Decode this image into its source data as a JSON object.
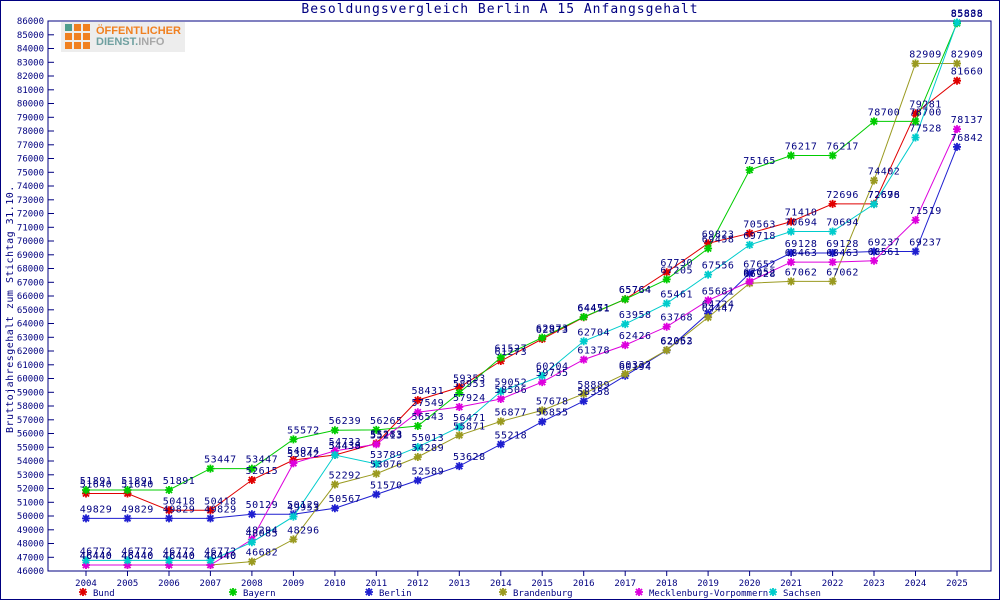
{
  "title": "Besoldungsvergleich Berlin A 15 Anfangsgehalt",
  "y_axis_label": "Bruttojahresgehalt zum Stichtag 31.10.",
  "logo": {
    "line1": "ÖFFENTLICHER",
    "line2a": "DIENST.",
    "line2b": "INFO",
    "orange": "#f08020",
    "teal": "#4f9d8d",
    "gray": "#a8a8a8"
  },
  "colors": {
    "axis_and_text": "#000080",
    "background": "#ffffff"
  },
  "chart_data": {
    "type": "line",
    "title": "Besoldungsvergleich Berlin A 15 Anfangsgehalt",
    "xlabel": "",
    "ylabel": "Bruttojahresgehalt zum Stichtag 31.10.",
    "ylim": [
      46000,
      86000
    ],
    "ytick_step": 1000,
    "grid": false,
    "legend_position": "bottom",
    "marker": "asterisk",
    "point_labels": true,
    "x": [
      2004,
      2005,
      2006,
      2007,
      2008,
      2009,
      2010,
      2011,
      2012,
      2013,
      2014,
      2015,
      2016,
      2017,
      2018,
      2019,
      2020,
      2021,
      2022,
      2023,
      2024,
      2025
    ],
    "series": [
      {
        "name": "Bund",
        "color": "#e00000",
        "values": [
          51640,
          51640,
          50418,
          50418,
          52615,
          54074,
          54438,
          55283,
          58431,
          59353,
          61273,
          62873,
          64451,
          65764,
          67730,
          69823,
          70563,
          71410,
          72696,
          72696,
          79281,
          81660
        ]
      },
      {
        "name": "Bayern",
        "color": "#00cc00",
        "values": [
          51891,
          51891,
          51891,
          53447,
          53447,
          55572,
          56239,
          56265,
          56543,
          58953,
          61527,
          62973,
          64471,
          65764,
          67205,
          69458,
          75165,
          76217,
          76217,
          78700,
          78700,
          85838
        ]
      },
      {
        "name": "Berlin",
        "color": "#1f1fd0",
        "values": [
          49829,
          49829,
          49829,
          49829,
          50129,
          50129,
          50567,
          51570,
          52589,
          53628,
          55218,
          56855,
          58358,
          60194,
          62053,
          64724,
          67652,
          69128,
          69128,
          69237,
          69237,
          76842
        ]
      },
      {
        "name": "Brandenburg",
        "color": "#9a9a20",
        "values": [
          46440,
          46440,
          46440,
          46440,
          46682,
          48296,
          52292,
          53076,
          54289,
          55871,
          56877,
          57678,
          58889,
          60332,
          62062,
          64447,
          66928,
          67062,
          67062,
          74402,
          82909,
          82909
        ]
      },
      {
        "name": "Mecklenburg-Vorpommern",
        "color": "#dd00dd",
        "values": [
          46440,
          46440,
          46440,
          46440,
          48294,
          53842,
          54733,
          55213,
          57549,
          57924,
          58506,
          59735,
          61378,
          62426,
          63768,
          65681,
          67052,
          68463,
          68463,
          68561,
          71519,
          78137
        ]
      },
      {
        "name": "Sachsen",
        "color": "#00cccc",
        "values": [
          46772,
          46772,
          46772,
          46772,
          48085,
          49953,
          54439,
          53789,
          55013,
          56471,
          59052,
          60204,
          62704,
          63958,
          65461,
          67556,
          69718,
          70694,
          70694,
          72678,
          77528,
          85888
        ]
      }
    ]
  }
}
